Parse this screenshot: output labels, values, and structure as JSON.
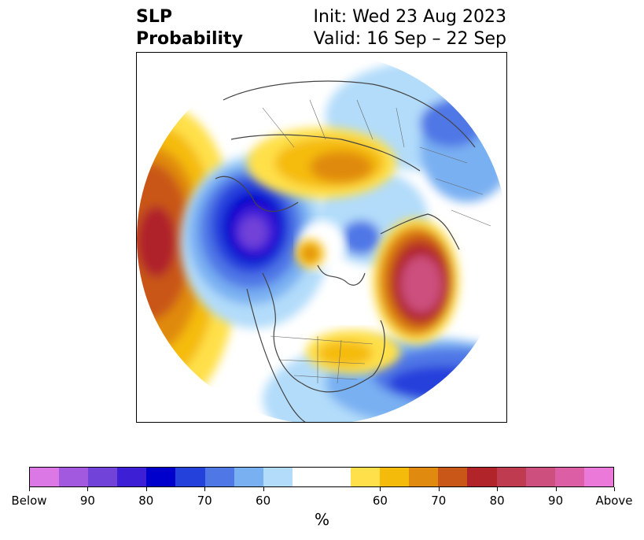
{
  "title": {
    "left_line1": "SLP",
    "left_line2": "Probability",
    "right_line1": "Init: Wed 23 Aug 2023",
    "right_line2": "Valid: 16 Sep – 22 Sep"
  },
  "colorbar": {
    "colors": [
      "#dc78e6",
      "#a259e0",
      "#7243d8",
      "#3d1fd6",
      "#0000cd",
      "#2541dc",
      "#4f77e6",
      "#79b0f2",
      "#b2dcfa",
      "#ffffff",
      "#ffffff",
      "#ffe04a",
      "#f5bb0b",
      "#e08a10",
      "#c95718",
      "#b0242a",
      "#bf3c50",
      "#cc4f7d",
      "#dc5fa6",
      "#ea79d9"
    ],
    "tick_labels": [
      "Below",
      "90",
      "80",
      "70",
      "60",
      "60",
      "70",
      "80",
      "90",
      "Above"
    ],
    "unit": "%"
  }
}
